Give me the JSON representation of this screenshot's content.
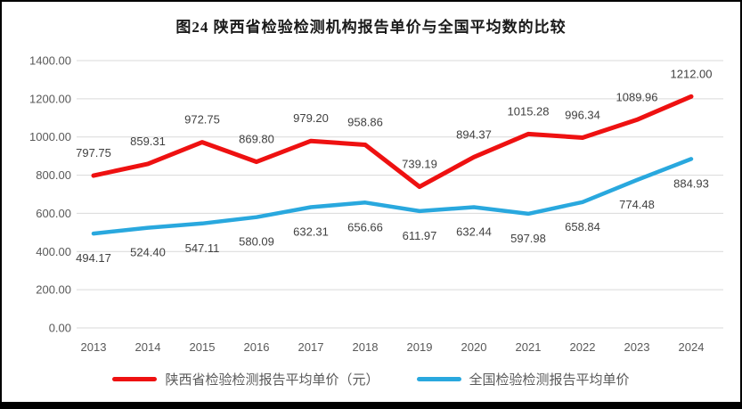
{
  "figure": {
    "title": "图24 陕西省检验检测机构报告单价与全国平均数的比较"
  },
  "chart_data": {
    "type": "line",
    "title": "图24 陕西省检验检测机构报告单价与全国平均数的比较",
    "categories": [
      "2013",
      "2014",
      "2015",
      "2016",
      "2017",
      "2018",
      "2019",
      "2020",
      "2021",
      "2022",
      "2023",
      "2024"
    ],
    "series": [
      {
        "name": "陕西省检验检测报告平均单价（元）",
        "color": "#ee1111",
        "label_position": "above",
        "values": [
          797.75,
          859.31,
          972.75,
          869.8,
          979.2,
          958.86,
          739.19,
          894.37,
          1015.28,
          996.34,
          1089.96,
          1212.0
        ]
      },
      {
        "name": "全国检验检测报告平均单价",
        "color": "#29a8de",
        "label_position": "below",
        "values": [
          494.17,
          524.4,
          547.11,
          580.09,
          632.31,
          656.66,
          611.97,
          632.44,
          597.98,
          658.84,
          774.48,
          884.93
        ]
      }
    ],
    "ylim": [
      0,
      1400
    ],
    "ytick_step": 200,
    "ytick_labels": [
      "0.00",
      "200.00",
      "400.00",
      "600.00",
      "800.00",
      "1000.00",
      "1200.00",
      "1400.00"
    ],
    "grid": "horizontal",
    "legend_position": "bottom"
  },
  "colors": {
    "grid_line": "#d9d9d9",
    "axis_text": "#595959",
    "data_label_text": "#404040",
    "frame_border": "#000000",
    "background": "#ffffff"
  }
}
